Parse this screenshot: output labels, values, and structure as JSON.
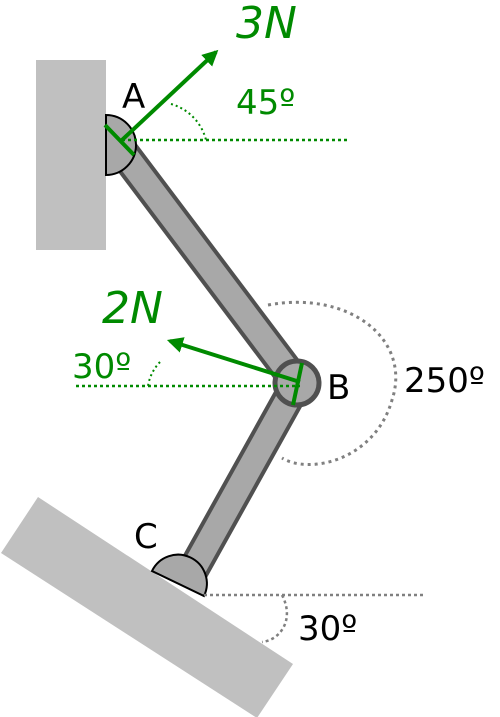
{
  "points": {
    "a": "A",
    "b": "B",
    "c": "C"
  },
  "forces": {
    "at_a": {
      "magnitude": "3N",
      "angle": "45º"
    },
    "at_b": {
      "magnitude": "2N",
      "angle": "30º"
    }
  },
  "angles": {
    "joint_b": "250º",
    "ground_c": "30º"
  },
  "colors": {
    "wall": "#c0c0c0",
    "link_fill": "#a8a8a8",
    "link_stroke": "#505050",
    "force": "#008a00",
    "guide": "#808080"
  }
}
